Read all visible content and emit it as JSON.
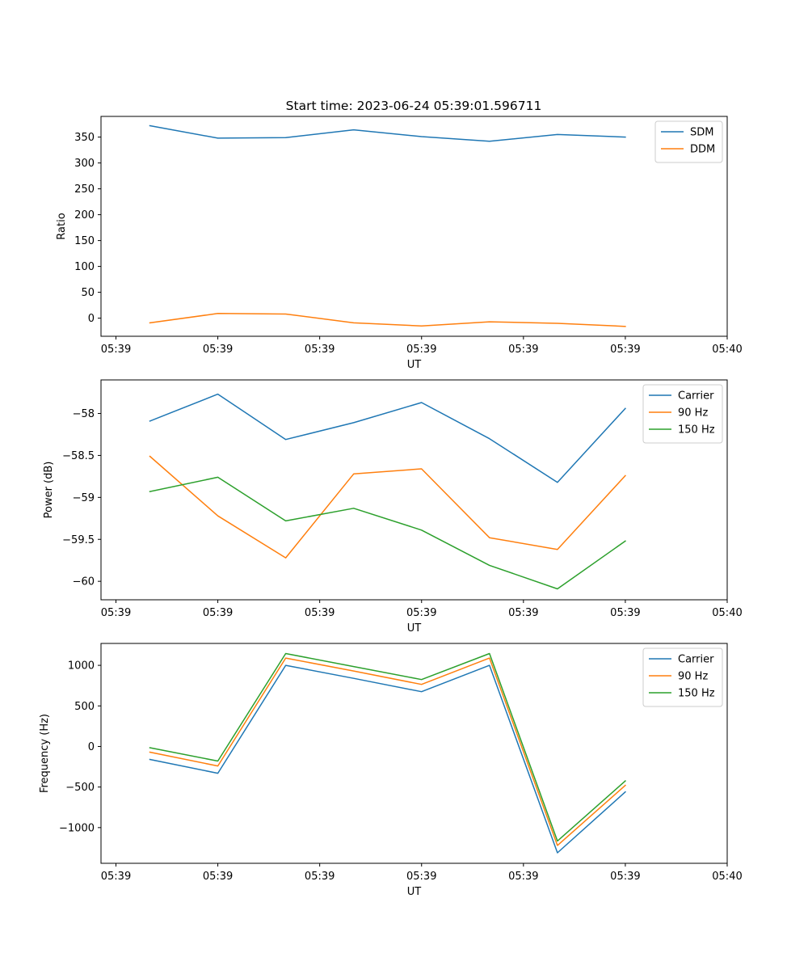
{
  "title": "Start time: 2023-06-24 05:39:01.596711",
  "colors": {
    "blue": "#1f77b4",
    "orange": "#ff7f0e",
    "green": "#2ca02c"
  },
  "chart_data": [
    {
      "type": "line",
      "title": "Start time: 2023-06-24 05:39:01.596711",
      "xlabel": "UT",
      "ylabel": "Ratio",
      "x_index": [
        0,
        1,
        2,
        3,
        4,
        5,
        6,
        7
      ],
      "xlim": [
        -0.72,
        8.5
      ],
      "xticks": [
        {
          "pos": -0.5,
          "label": "05:39"
        },
        {
          "pos": 1,
          "label": "05:39"
        },
        {
          "pos": 2.5,
          "label": "05:39"
        },
        {
          "pos": 4,
          "label": "05:39"
        },
        {
          "pos": 5.5,
          "label": "05:39"
        },
        {
          "pos": 7,
          "label": "05:39"
        },
        {
          "pos": 8.5,
          "label": "05:40"
        }
      ],
      "ylim": [
        -35,
        390
      ],
      "yticks": [
        0,
        50,
        100,
        150,
        200,
        250,
        300,
        350
      ],
      "legend": "top-right",
      "series": [
        {
          "name": "SDM",
          "color": "#1f77b4",
          "values": [
            372,
            348,
            349,
            364,
            351,
            342,
            355,
            350
          ]
        },
        {
          "name": "DDM",
          "color": "#ff7f0e",
          "values": [
            -9,
            9,
            8,
            -9,
            -15,
            -7,
            -10,
            -16
          ]
        }
      ]
    },
    {
      "type": "line",
      "xlabel": "UT",
      "ylabel": "Power (dB)",
      "x_index": [
        0,
        1,
        2,
        3,
        4,
        5,
        6,
        7
      ],
      "xlim": [
        -0.72,
        8.5
      ],
      "xticks": [
        {
          "pos": -0.5,
          "label": "05:39"
        },
        {
          "pos": 1,
          "label": "05:39"
        },
        {
          "pos": 2.5,
          "label": "05:39"
        },
        {
          "pos": 4,
          "label": "05:39"
        },
        {
          "pos": 5.5,
          "label": "05:39"
        },
        {
          "pos": 7,
          "label": "05:39"
        },
        {
          "pos": 8.5,
          "label": "05:40"
        }
      ],
      "ylim": [
        -60.22,
        -57.6
      ],
      "yticks": [
        -60.0,
        -59.5,
        -59.0,
        -58.5,
        -58.0
      ],
      "legend": "top-right",
      "series": [
        {
          "name": "Carrier",
          "color": "#1f77b4",
          "values": [
            -58.09,
            -57.77,
            -58.31,
            -58.11,
            -57.87,
            -58.3,
            -58.82,
            -57.94
          ]
        },
        {
          "name": "90 Hz",
          "color": "#ff7f0e",
          "values": [
            -58.51,
            -59.22,
            -59.72,
            -58.72,
            -58.66,
            -59.48,
            -59.62,
            -58.74
          ]
        },
        {
          "name": "150 Hz",
          "color": "#2ca02c",
          "values": [
            -58.93,
            -58.76,
            -59.28,
            -59.13,
            -59.39,
            -59.81,
            -60.09,
            -59.52
          ]
        }
      ]
    },
    {
      "type": "line",
      "xlabel": "UT",
      "ylabel": "Frequency (Hz)",
      "x_index": [
        0,
        1,
        2,
        3,
        4,
        5,
        6,
        7
      ],
      "xlim": [
        -0.72,
        8.5
      ],
      "xticks": [
        {
          "pos": -0.5,
          "label": "05:39"
        },
        {
          "pos": 1,
          "label": "05:39"
        },
        {
          "pos": 2.5,
          "label": "05:39"
        },
        {
          "pos": 4,
          "label": "05:39"
        },
        {
          "pos": 5.5,
          "label": "05:39"
        },
        {
          "pos": 7,
          "label": "05:39"
        },
        {
          "pos": 8.5,
          "label": "05:40"
        }
      ],
      "ylim": [
        -1440,
        1270
      ],
      "yticks": [
        -1000,
        -500,
        0,
        500,
        1000
      ],
      "legend": "top-right",
      "series": [
        {
          "name": "Carrier",
          "color": "#1f77b4",
          "values": [
            -160,
            -330,
            1000,
            840,
            675,
            1000,
            -1310,
            -560
          ]
        },
        {
          "name": "90 Hz",
          "color": "#ff7f0e",
          "values": [
            -70,
            -240,
            1090,
            930,
            765,
            1090,
            -1220,
            -480
          ]
        },
        {
          "name": "150 Hz",
          "color": "#2ca02c",
          "values": [
            -15,
            -180,
            1145,
            985,
            825,
            1145,
            -1165,
            -425
          ]
        }
      ]
    }
  ]
}
